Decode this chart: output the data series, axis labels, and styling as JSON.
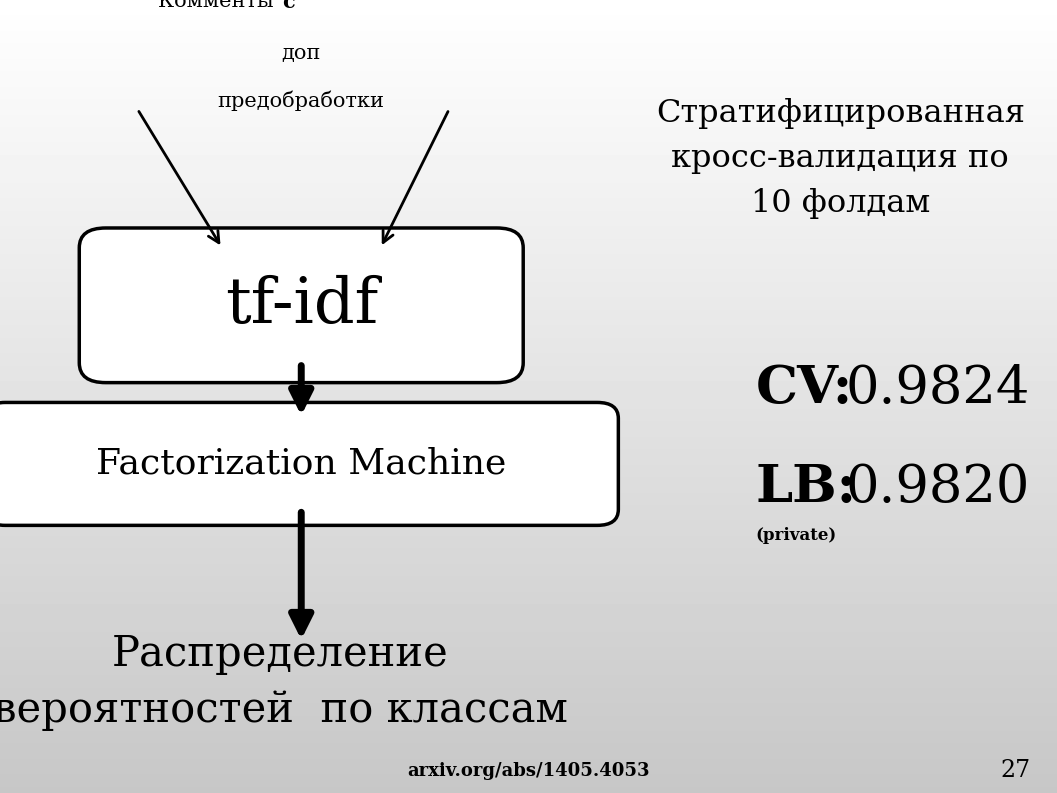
{
  "box1_text": "tf-idf",
  "box2_text": "Factorization Machine",
  "top_label_normal": "Комменты ",
  "top_label_bold": "с",
  "top_label_line2": "доп",
  "top_label_line3": "предобработки",
  "bottom_label_line1": "Распределение",
  "bottom_label_line2": "вероятностей  по классам",
  "right_title": "Стратифицированная\nкросс-валидация по\n10 фолдам",
  "cv_bold": "CV:",
  "cv_value": " 0.9824",
  "lb_bold": "LB:",
  "lb_value": " 0.9820",
  "private_text": "(private)",
  "footer_text": "arxiv.org/abs/1405.4053",
  "slide_number": "27"
}
